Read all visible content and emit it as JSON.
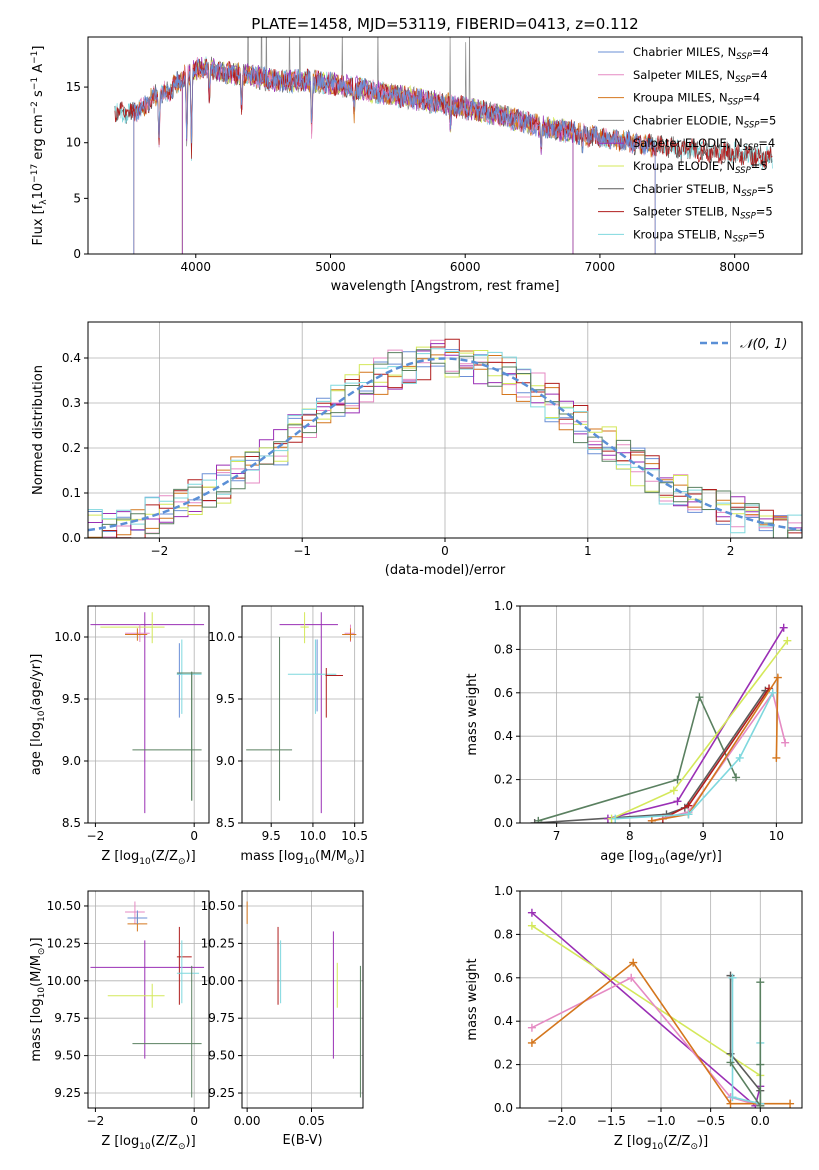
{
  "figure_title": "PLATE=1458, MJD=53119, FIBERID=0413, z=0.112",
  "colors": {
    "chabrier_miles": "#6a8fd6",
    "salpeter_miles": "#e58ac3",
    "kroupa_miles": "#d4761d",
    "chabrier_elodie": "#8c8c8c",
    "salpeter_elodie": "#9a2fb5",
    "kroupa_elodie": "#d4e85a",
    "chabrier_stelib": "#5c5c5c",
    "salpeter_stelib": "#b01e1e",
    "kroupa_stelib": "#7fd8de",
    "normal_curve": "#5a8fd6",
    "green_series": "#5a8060"
  },
  "chart_data": [
    {
      "id": "spectrum",
      "type": "line",
      "xlabel": "wavelength [Angstrom, rest frame]",
      "ylabel_parts": [
        "Flux [f",
        "λ",
        "10",
        "−17",
        " erg cm",
        "−2",
        " s",
        "−1",
        " A",
        "−1",
        "]"
      ],
      "xlim": [
        3200,
        8500
      ],
      "ylim": [
        0,
        19.5
      ],
      "xticks": [
        4000,
        5000,
        6000,
        7000,
        8000
      ],
      "yticks": [
        0,
        5,
        10,
        15
      ],
      "grid": false,
      "legend_placement": "upper-right",
      "legend": [
        {
          "label": "Chabrier MILES, N",
          "sub": "SSP",
          "n": "=4",
          "color_key": "chabrier_miles"
        },
        {
          "label": "Salpeter MILES, N",
          "sub": "SSP",
          "n": "=4",
          "color_key": "salpeter_miles"
        },
        {
          "label": "Kroupa MILES, N",
          "sub": "SSP",
          "n": "=4",
          "color_key": "kroupa_miles"
        },
        {
          "label": "Chabrier ELODIE, N",
          "sub": "SSP",
          "n": "=5",
          "color_key": "chabrier_elodie"
        },
        {
          "label": "Salpeter ELODIE, N",
          "sub": "SSP",
          "n": "=4",
          "color_key": "salpeter_elodie"
        },
        {
          "label": "Kroupa ELODIE, N",
          "sub": "SSP",
          "n": "=5",
          "color_key": "kroupa_elodie"
        },
        {
          "label": "Chabrier STELIB, N",
          "sub": "SSP",
          "n": "=5",
          "color_key": "chabrier_stelib"
        },
        {
          "label": "Salpeter STELIB, N",
          "sub": "SSP",
          "n": "=5",
          "color_key": "salpeter_stelib"
        },
        {
          "label": "Kroupa STELIB, N",
          "sub": "SSP",
          "n": "=5",
          "color_key": "kroupa_stelib"
        }
      ],
      "continuum": [
        [
          3400,
          12.8
        ],
        [
          3500,
          12.6
        ],
        [
          3600,
          13.1
        ],
        [
          3700,
          14.2
        ],
        [
          3800,
          14.6
        ],
        [
          3900,
          15.8
        ],
        [
          4000,
          16.6
        ],
        [
          4100,
          16.8
        ],
        [
          4200,
          16.3
        ],
        [
          4400,
          16.1
        ],
        [
          4600,
          15.5
        ],
        [
          4800,
          15.6
        ],
        [
          5000,
          15.3
        ],
        [
          5200,
          14.9
        ],
        [
          5400,
          14.4
        ],
        [
          5600,
          14.0
        ],
        [
          5800,
          13.6
        ],
        [
          6000,
          13.1
        ],
        [
          6200,
          12.6
        ],
        [
          6400,
          12.0
        ],
        [
          6600,
          11.3
        ],
        [
          6800,
          11.0
        ],
        [
          7000,
          10.4
        ],
        [
          7200,
          10.1
        ],
        [
          7400,
          9.7
        ],
        [
          7600,
          9.5
        ],
        [
          7800,
          9.2
        ],
        [
          8000,
          9.0
        ],
        [
          8280,
          8.6
        ]
      ],
      "dips": [
        [
          3727,
          4.2
        ],
        [
          3933,
          6.0
        ],
        [
          3968,
          7.0
        ],
        [
          4101,
          3.2
        ],
        [
          4340,
          3.5
        ],
        [
          4861,
          4.6
        ],
        [
          5175,
          2.4
        ],
        [
          5890,
          2.0
        ],
        [
          6563,
          2.2
        ],
        [
          6870,
          1.5
        ],
        [
          7600,
          1.2
        ]
      ],
      "series_extents": [
        {
          "color_key": "chabrier_miles",
          "x": [
            3540,
            7410
          ]
        },
        {
          "color_key": "salpeter_miles",
          "x": [
            3540,
            7410
          ]
        },
        {
          "color_key": "kroupa_miles",
          "x": [
            3540,
            7410
          ]
        },
        {
          "color_key": "chabrier_elodie",
          "x": [
            3900,
            6800
          ]
        },
        {
          "color_key": "salpeter_elodie",
          "x": [
            3900,
            6800
          ]
        },
        {
          "color_key": "kroupa_elodie",
          "x": [
            3900,
            6800
          ]
        },
        {
          "color_key": "chabrier_stelib",
          "x": [
            3400,
            8280
          ]
        },
        {
          "color_key": "salpeter_stelib",
          "x": [
            3400,
            8280
          ]
        },
        {
          "color_key": "kroupa_stelib",
          "x": [
            3400,
            8280
          ]
        }
      ]
    },
    {
      "id": "residuals",
      "type": "histogram",
      "xlabel": "(data-model)/error",
      "ylabel": "Normed distribution",
      "xlim": [
        -2.5,
        2.5
      ],
      "ylim": [
        0,
        0.48
      ],
      "xticks": [
        -2,
        -1,
        0,
        1,
        2
      ],
      "yticks": [
        0.0,
        0.1,
        0.2,
        0.3,
        0.4
      ],
      "grid": true,
      "legend_placement": "upper-right",
      "normal_label": "𝒩(0, 1)",
      "bin_width": 0.1,
      "series": [
        {
          "color_key": "chabrier_miles",
          "seed": 3
        },
        {
          "color_key": "salpeter_miles",
          "seed": 7
        },
        {
          "color_key": "kroupa_miles",
          "seed": 11
        },
        {
          "color_key": "salpeter_elodie",
          "seed": 19
        },
        {
          "color_key": "kroupa_elodie",
          "seed": 23
        },
        {
          "color_key": "salpeter_stelib",
          "seed": 31
        },
        {
          "color_key": "kroupa_stelib",
          "seed": 37
        },
        {
          "color_key": "green_series",
          "seed": 41
        }
      ]
    },
    {
      "id": "age_vs_Z",
      "type": "scatter",
      "xlabel_parts": [
        "Z [log",
        "10",
        "(Z/Z",
        "⊙",
        ")]"
      ],
      "ylabel_parts": [
        "age  [log",
        "10",
        "(age/yr)]"
      ],
      "xlim": [
        -2.15,
        0.3
      ],
      "ylim": [
        8.5,
        10.25
      ],
      "xticks": [
        -2,
        0
      ],
      "yticks": [
        8.5,
        9.0,
        9.5,
        10.0
      ],
      "grid": true,
      "points": [
        {
          "color_key": "salpeter_elodie",
          "x": -1.0,
          "xlo": -2.1,
          "xhi": 0.2,
          "y": 10.1,
          "ylo": 8.58,
          "yhi": 10.2
        },
        {
          "color_key": "kroupa_elodie",
          "x": -0.85,
          "xlo": -1.9,
          "xhi": -0.6,
          "y": 10.08,
          "ylo": 9.95,
          "yhi": 10.2
        },
        {
          "color_key": "salpeter_miles",
          "x": -1.1,
          "xlo": -1.4,
          "xhi": -0.9,
          "y": 10.03,
          "ylo": 9.96,
          "yhi": 10.1
        },
        {
          "color_key": "kroupa_miles",
          "x": -1.15,
          "xlo": -1.4,
          "xhi": -0.95,
          "y": 10.02,
          "ylo": 9.97,
          "yhi": 10.07
        },
        {
          "color_key": "chabrier_miles",
          "x": -0.3,
          "xlo": -0.35,
          "xhi": -0.25,
          "y": 9.7,
          "ylo": 9.35,
          "yhi": 9.95
        },
        {
          "color_key": "kroupa_stelib",
          "x": -0.25,
          "xlo": -0.35,
          "xhi": 0.15,
          "y": 9.7,
          "ylo": 9.38,
          "yhi": 9.98
        },
        {
          "color_key": "green_series",
          "x": -0.05,
          "xlo": -0.35,
          "xhi": 0.15,
          "y": 9.71,
          "ylo": 8.68,
          "yhi": 9.72
        },
        {
          "color_key": "green_series",
          "x": -0.05,
          "xlo": -1.25,
          "xhi": 0.15,
          "y": 9.09,
          "ylo": 8.68,
          "yhi": 9.72
        }
      ]
    },
    {
      "id": "age_vs_mass",
      "type": "scatter",
      "xlabel_parts": [
        "mass [log",
        "10",
        "(M/M",
        "⊙",
        ")]"
      ],
      "xlim": [
        9.15,
        10.6
      ],
      "ylim": [
        8.5,
        10.25
      ],
      "xticks": [
        9.5,
        10.0,
        10.5
      ],
      "yticks": [
        8.5,
        9.0,
        9.5,
        10.0
      ],
      "grid": true,
      "points": [
        {
          "color_key": "salpeter_elodie",
          "x": 10.1,
          "xlo": 9.6,
          "xhi": 10.3,
          "y": 10.1,
          "ylo": 8.58,
          "yhi": 10.2
        },
        {
          "color_key": "kroupa_elodie",
          "x": 9.9,
          "xlo": 9.85,
          "xhi": 9.95,
          "y": 10.08,
          "ylo": 9.95,
          "yhi": 10.2
        },
        {
          "color_key": "salpeter_miles",
          "x": 10.45,
          "xlo": 10.38,
          "xhi": 10.5,
          "y": 10.03,
          "ylo": 9.96,
          "yhi": 10.1
        },
        {
          "color_key": "kroupa_miles",
          "x": 10.45,
          "xlo": 10.35,
          "xhi": 10.52,
          "y": 10.02,
          "ylo": 9.97,
          "yhi": 10.07
        },
        {
          "color_key": "chabrier_miles",
          "x": 10.05,
          "xlo": 10.0,
          "xhi": 10.1,
          "y": 9.7,
          "ylo": 9.4,
          "yhi": 9.98
        },
        {
          "color_key": "kroupa_stelib",
          "x": 10.03,
          "xlo": 9.7,
          "xhi": 10.28,
          "y": 9.7,
          "ylo": 9.38,
          "yhi": 9.98
        },
        {
          "color_key": "salpeter_stelib",
          "x": 10.16,
          "xlo": 10.15,
          "xhi": 10.36,
          "y": 9.69,
          "ylo": 9.35,
          "yhi": 9.75
        },
        {
          "color_key": "green_series",
          "x": 9.6,
          "xlo": 9.2,
          "xhi": 9.75,
          "y": 9.09,
          "ylo": 8.68,
          "yhi": 10.0
        }
      ]
    },
    {
      "id": "weight_vs_age",
      "type": "line",
      "xlabel_parts": [
        "age  [log",
        "10",
        "(age/yr)]"
      ],
      "ylabel": "mass weight",
      "xlim": [
        6.5,
        10.35
      ],
      "ylim": [
        0.0,
        1.0
      ],
      "xticks": [
        7,
        8,
        9,
        10
      ],
      "yticks": [
        0.0,
        0.2,
        0.4,
        0.6,
        0.8,
        1.0
      ],
      "grid": true,
      "series": [
        {
          "color_key": "green_series",
          "x": [
            6.75,
            8.65,
            8.95,
            9.45
          ],
          "y": [
            0.01,
            0.2,
            0.58,
            0.21
          ]
        },
        {
          "color_key": "chabrier_stelib",
          "x": [
            6.7,
            8.5,
            8.75,
            9.85
          ],
          "y": [
            0.0,
            0.04,
            0.07,
            0.61
          ]
        },
        {
          "color_key": "salpeter_stelib",
          "x": [
            8.45,
            8.8,
            9.9
          ],
          "y": [
            0.02,
            0.08,
            0.62
          ]
        },
        {
          "color_key": "salpeter_elodie",
          "x": [
            7.7,
            8.65,
            10.1
          ],
          "y": [
            0.02,
            0.1,
            0.9
          ]
        },
        {
          "color_key": "kroupa_elodie",
          "x": [
            7.75,
            8.6,
            10.15
          ],
          "y": [
            0.02,
            0.15,
            0.84
          ]
        },
        {
          "color_key": "salpeter_miles",
          "x": [
            8.3,
            8.8,
            9.95,
            10.12
          ],
          "y": [
            0.01,
            0.05,
            0.6,
            0.37
          ]
        },
        {
          "color_key": "kroupa_miles",
          "x": [
            8.3,
            8.8,
            10.02,
            10.0
          ],
          "y": [
            0.01,
            0.04,
            0.67,
            0.3
          ]
        },
        {
          "color_key": "kroupa_stelib",
          "x": [
            7.8,
            8.8,
            9.5,
            9.95
          ],
          "y": [
            0.02,
            0.04,
            0.3,
            0.6
          ]
        }
      ]
    },
    {
      "id": "mass_vs_Z",
      "type": "scatter",
      "xlabel_parts": [
        "Z [log",
        "10",
        "(Z/Z",
        "⊙",
        ")]"
      ],
      "ylabel_parts": [
        "mass [log",
        "10",
        "(M/M",
        "⊙",
        ")]"
      ],
      "xlim": [
        -2.15,
        0.3
      ],
      "ylim": [
        9.15,
        10.6
      ],
      "xticks": [
        -2,
        0
      ],
      "yticks": [
        9.25,
        9.5,
        9.75,
        10.0,
        10.25,
        10.5
      ],
      "grid": true,
      "points": [
        {
          "color_key": "salpeter_elodie",
          "x": -1.0,
          "xlo": -2.1,
          "xhi": 0.2,
          "y": 10.09,
          "ylo": 9.48,
          "yhi": 10.27
        },
        {
          "color_key": "kroupa_elodie",
          "x": -0.85,
          "xlo": -1.75,
          "xhi": -0.6,
          "y": 9.9,
          "ylo": 9.82,
          "yhi": 9.98
        },
        {
          "color_key": "salpeter_miles",
          "x": -1.2,
          "xlo": -1.4,
          "xhi": -1.0,
          "y": 10.46,
          "ylo": 10.38,
          "yhi": 10.53
        },
        {
          "color_key": "kroupa_miles",
          "x": -1.15,
          "xlo": -1.35,
          "xhi": -0.95,
          "y": 10.38,
          "ylo": 10.33,
          "yhi": 10.45
        },
        {
          "color_key": "chabrier_miles",
          "x": -1.15,
          "xlo": -1.35,
          "xhi": -0.95,
          "y": 10.42,
          "ylo": 10.38,
          "yhi": 10.47
        },
        {
          "color_key": "salpeter_stelib",
          "x": -0.3,
          "xlo": -0.35,
          "xhi": -0.05,
          "y": 10.16,
          "ylo": 9.84,
          "yhi": 10.36
        },
        {
          "color_key": "kroupa_stelib",
          "x": -0.25,
          "xlo": -0.35,
          "xhi": 0.1,
          "y": 10.05,
          "ylo": 9.85,
          "yhi": 10.27
        },
        {
          "color_key": "green_series",
          "x": -0.05,
          "xlo": -1.25,
          "xhi": 0.15,
          "y": 9.58,
          "ylo": 9.22,
          "yhi": 10.1
        }
      ]
    },
    {
      "id": "mass_vs_ebv",
      "type": "scatter",
      "xlabel": "E(B-V)",
      "xlim": [
        -0.004,
        0.09
      ],
      "ylim": [
        9.15,
        10.6
      ],
      "xticks": [
        0.0,
        0.05
      ],
      "yticks": [
        9.25,
        9.5,
        9.75,
        10.0,
        10.25,
        10.5
      ],
      "grid": true,
      "points": [
        {
          "color_key": "kroupa_miles",
          "x": 0.0,
          "y": 10.45,
          "ylo": 10.38,
          "yhi": 10.53
        },
        {
          "color_key": "salpeter_stelib",
          "x": 0.024,
          "y": 10.1,
          "ylo": 9.84,
          "yhi": 10.36
        },
        {
          "color_key": "kroupa_stelib",
          "x": 0.026,
          "y": 10.05,
          "ylo": 9.85,
          "yhi": 10.27
        },
        {
          "color_key": "kroupa_elodie",
          "x": 0.07,
          "y": 9.9,
          "ylo": 9.82,
          "yhi": 10.12
        },
        {
          "color_key": "salpeter_elodie",
          "x": 0.067,
          "y": 9.9,
          "ylo": 9.48,
          "yhi": 10.33
        },
        {
          "color_key": "green_series",
          "x": 0.088,
          "y": 9.6,
          "ylo": 9.22,
          "yhi": 10.1
        }
      ]
    },
    {
      "id": "weight_vs_Z",
      "type": "line",
      "xlabel_parts": [
        "Z [log",
        "10",
        "(Z/Z",
        "⊙",
        ")]"
      ],
      "ylabel": "mass weight",
      "xlim": [
        -2.42,
        0.42
      ],
      "ylim": [
        0.0,
        1.0
      ],
      "xticks": [
        -2.0,
        -1.5,
        -1.0,
        -0.5,
        0.0
      ],
      "yticks": [
        0.0,
        0.2,
        0.4,
        0.6,
        0.8,
        1.0
      ],
      "grid": true,
      "series": [
        {
          "color_key": "salpeter_elodie",
          "x": [
            -2.3,
            -0.05,
            0.0
          ],
          "y": [
            0.9,
            0.01,
            0.1
          ]
        },
        {
          "color_key": "kroupa_elodie",
          "x": [
            -2.3,
            0.0,
            0.0
          ],
          "y": [
            0.84,
            0.15,
            0.02
          ]
        },
        {
          "color_key": "salpeter_miles",
          "x": [
            -2.3,
            -1.3,
            -0.3,
            0.0
          ],
          "y": [
            0.37,
            0.6,
            0.05,
            0.01
          ]
        },
        {
          "color_key": "kroupa_miles",
          "x": [
            -2.3,
            -1.28,
            -0.3,
            0.0,
            0.3
          ],
          "y": [
            0.3,
            0.67,
            0.02,
            0.02,
            0.02
          ]
        },
        {
          "color_key": "chabrier_stelib",
          "x": [
            -0.3,
            -0.3,
            0.0,
            0.0
          ],
          "y": [
            0.61,
            0.25,
            0.08,
            0.02
          ]
        },
        {
          "color_key": "kroupa_stelib",
          "x": [
            -0.28,
            -0.28,
            0.0,
            0.0
          ],
          "y": [
            0.6,
            0.05,
            0.02,
            0.3
          ]
        },
        {
          "color_key": "green_series",
          "x": [
            0.0,
            0.0,
            0.0,
            -0.3
          ],
          "y": [
            0.58,
            0.2,
            0.01,
            0.21
          ]
        }
      ]
    }
  ]
}
